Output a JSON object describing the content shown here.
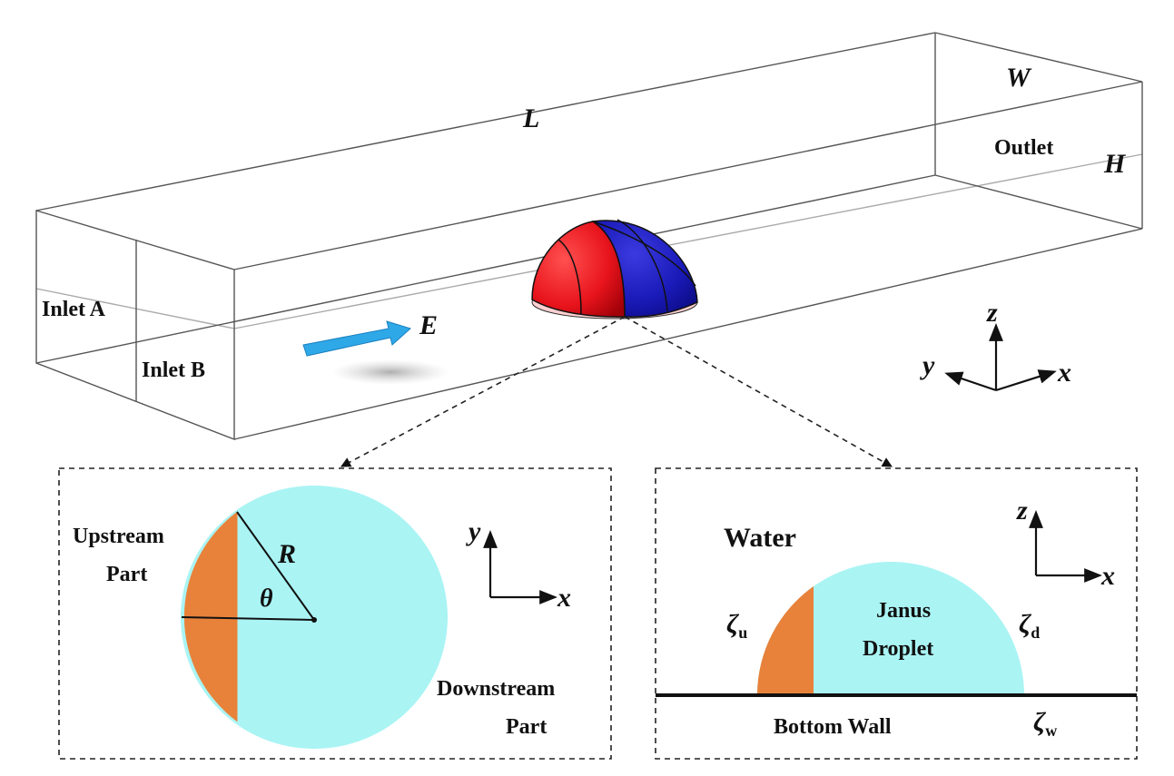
{
  "channel": {
    "length_label": "L",
    "width_label": "W",
    "height_label": "H",
    "outlet_label": "Outlet",
    "inlet_a_label": "Inlet A",
    "inlet_b_label": "Inlet B",
    "field_label": "E"
  },
  "axes_3d": {
    "x": "x",
    "y": "y",
    "z": "z"
  },
  "top_view": {
    "upstream_label_line1": "Upstream",
    "upstream_label_line2": "Part",
    "downstream_label_line1": "Downstream",
    "downstream_label_line2": "Part",
    "radius_label": "R",
    "angle_label": "θ",
    "axis_x": "x",
    "axis_y": "y"
  },
  "side_view": {
    "medium_label": "Water",
    "droplet_label_line1": "Janus",
    "droplet_label_line2": "Droplet",
    "zeta_u": "ζ",
    "zeta_u_sub": "u",
    "zeta_d": "ζ",
    "zeta_d_sub": "d",
    "zeta_w": "ζ",
    "zeta_w_sub": "w",
    "wall_label": "Bottom Wall",
    "axis_x": "x",
    "axis_z": "z"
  },
  "colors": {
    "upstream": "#e8823a",
    "downstream": "#aaf4f4",
    "droplet_red": "#e8141c",
    "droplet_blue": "#1a1ab8",
    "arrow": "#2fa8e8"
  }
}
